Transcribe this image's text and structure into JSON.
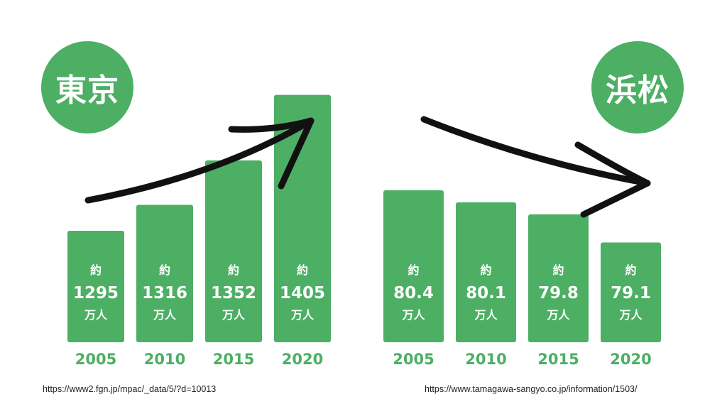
{
  "colors": {
    "bar": "#4caf64",
    "bar_text": "#ffffff",
    "year_text": "#4caf64",
    "arrow": "#111111"
  },
  "chart_data": [
    {
      "type": "bar",
      "badge": "東京",
      "categories": [
        "2005",
        "2010",
        "2015",
        "2020"
      ],
      "values": [
        1295,
        1316,
        1352,
        1405
      ],
      "value_prefix": "約",
      "unit": "万人",
      "trend": "up",
      "source": "https://www2.fgn.jp/mpac/_data/5/?d=10013"
    },
    {
      "type": "bar",
      "badge": "浜松",
      "categories": [
        "2005",
        "2010",
        "2015",
        "2020"
      ],
      "values": [
        80.4,
        80.1,
        79.8,
        79.1
      ],
      "value_prefix": "約",
      "unit": "万人",
      "trend": "down",
      "source": "https://www.tamagawa-sangyo.co.jp/information/1503/"
    }
  ]
}
